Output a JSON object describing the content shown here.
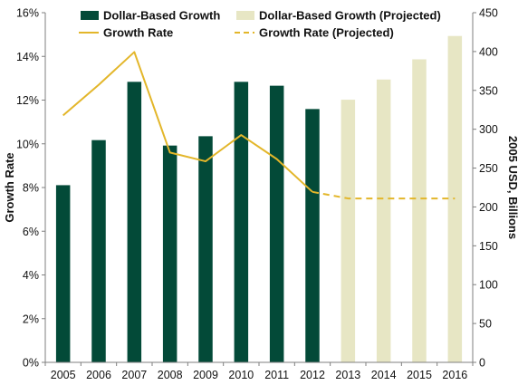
{
  "chart_data": {
    "type": "bar",
    "categories": [
      "2005",
      "2006",
      "2007",
      "2008",
      "2009",
      "2010",
      "2011",
      "2012",
      "2013",
      "2014",
      "2015",
      "2016"
    ],
    "series": [
      {
        "name": "Dollar-Based Growth",
        "kind": "bar",
        "axis": "right",
        "color": "#034a38",
        "values": [
          228,
          286,
          361,
          279,
          291,
          361,
          356,
          326,
          null,
          null,
          null,
          null
        ]
      },
      {
        "name": "Dollar-Based Growth (Projected)",
        "kind": "bar",
        "axis": "right",
        "color": "#e7e6c4",
        "values": [
          null,
          null,
          null,
          null,
          null,
          null,
          null,
          null,
          338,
          364,
          390,
          420
        ]
      },
      {
        "name": "Growth Rate",
        "kind": "line",
        "axis": "left",
        "color": "#e3b62a",
        "dashed": false,
        "values": [
          0.113,
          0.127,
          0.142,
          0.096,
          0.092,
          0.104,
          0.093,
          0.078,
          null,
          null,
          null,
          null
        ]
      },
      {
        "name": "Growth Rate (Projected)",
        "kind": "line",
        "axis": "left",
        "color": "#e3b62a",
        "dashed": true,
        "values": [
          null,
          null,
          null,
          null,
          null,
          null,
          null,
          0.078,
          0.075,
          0.075,
          0.075,
          0.075
        ]
      }
    ],
    "left_axis": {
      "label": "Growth Rate",
      "range": [
        0,
        0.16
      ],
      "ticks": [
        0,
        0.02,
        0.04,
        0.06,
        0.08,
        0.1,
        0.12,
        0.14,
        0.16
      ],
      "tick_labels": [
        "0%",
        "2%",
        "4%",
        "6%",
        "8%",
        "10%",
        "12%",
        "14%",
        "16%"
      ]
    },
    "right_axis": {
      "label": "2005 USD, Billions",
      "range": [
        0,
        450
      ],
      "ticks": [
        0,
        50,
        100,
        150,
        200,
        250,
        300,
        350,
        400,
        450
      ],
      "tick_labels": [
        "0",
        "50",
        "100",
        "150",
        "200",
        "250",
        "300",
        "350",
        "400",
        "450"
      ]
    },
    "grid": false,
    "legend_position": "top"
  }
}
